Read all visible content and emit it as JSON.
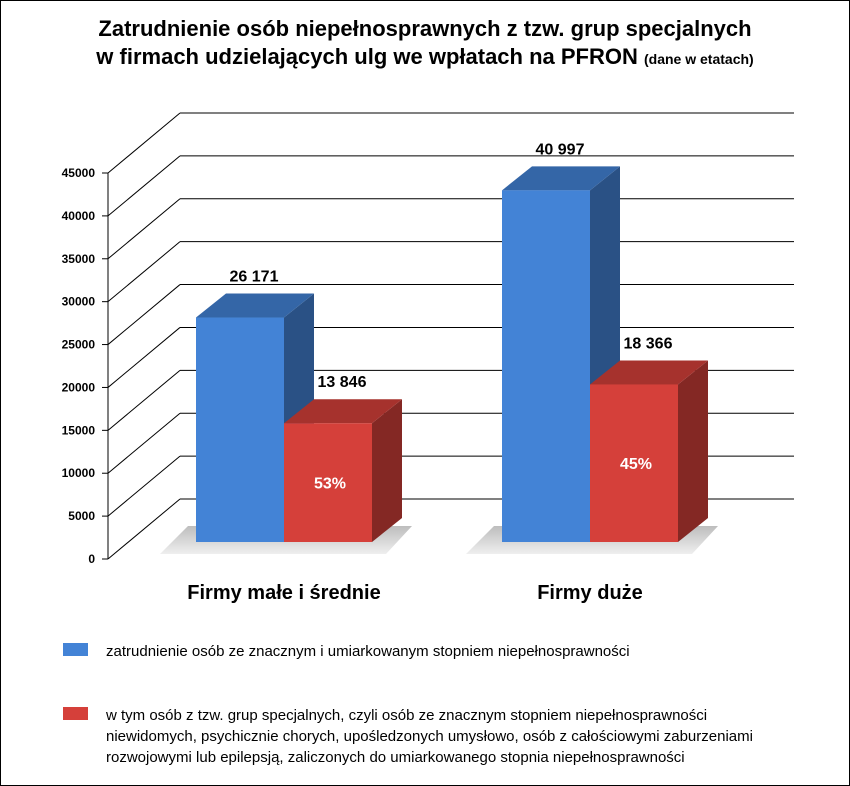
{
  "title": {
    "line1": "Zatrudnienie osób niepełnosprawnych z tzw. grup specjalnych",
    "line2": "w firmach udzielających ulg we wpłatach na PFRON",
    "suffix": "(dane w etatach)"
  },
  "chart_data": {
    "type": "bar",
    "style": "3d-clustered",
    "categories": [
      "Firmy małe i średnie",
      "Firmy duże"
    ],
    "series": [
      {
        "name": "zatrudnienie osób ze znacznym i umiarkowanym stopniem niepełnosprawności",
        "color": "#4383d6",
        "values": [
          26171,
          40997
        ],
        "labels": [
          "26 171",
          "40 997"
        ]
      },
      {
        "name": "w tym osób z tzw. grup specjalnych, czyli osób ze znacznym stopniem niepełnosprawności niewidomych, psychicznie chorych, upośledzonych umysłowo, osób z całościowymi zaburzeniami rozwojowymi lub epilepsją, zaliczonych do umiarkowanego stopnia niepełnosprawności",
        "color": "#d5403a",
        "values": [
          13846,
          18366
        ],
        "labels": [
          "13 846",
          "18 366"
        ],
        "inner_labels": [
          "53%",
          "45%"
        ]
      }
    ],
    "ylim": [
      0,
      45000
    ],
    "yticks": [
      0,
      5000,
      10000,
      15000,
      20000,
      25000,
      30000,
      35000,
      40000,
      45000
    ],
    "grid": true,
    "legend_position": "bottom"
  },
  "legend": [
    {
      "color": "#4383d6",
      "lines": [
        "zatrudnienie osób ze znacznym i umiarkowanym stopniem niepełnosprawności"
      ]
    },
    {
      "color": "#d5403a",
      "lines": [
        "w tym osób z tzw. grup specjalnych, czyli osób ze znacznym stopniem niepełnosprawności",
        "niewidomych, psychicznie chorych, upośledzonych umysłowo, osób z całościowymi zaburzeniami",
        "rozwojowymi lub epilepsją, zaliczonych do umiarkowanego stopnia niepełnosprawności"
      ]
    }
  ]
}
